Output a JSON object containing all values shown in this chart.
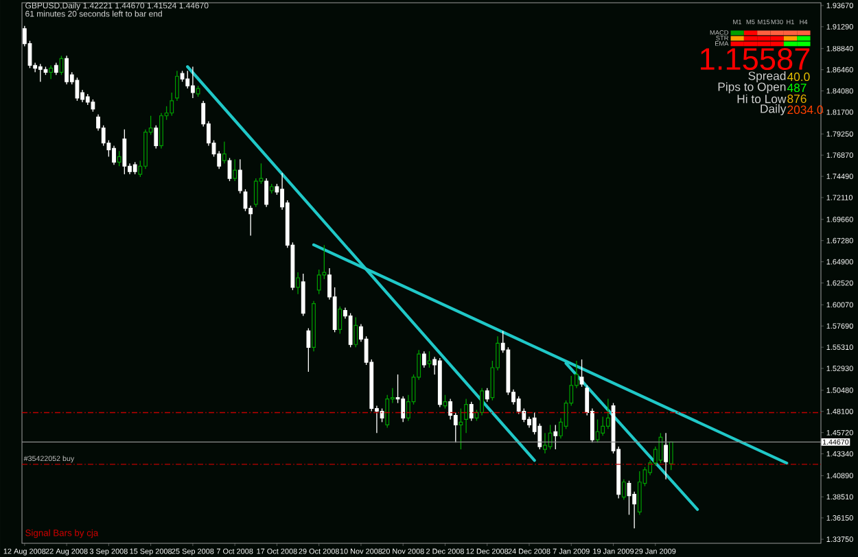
{
  "chart_data": {
    "type": "candlestick",
    "title": "GBPUSD,Daily 1.42221 1.44670 1.41524 1.44670",
    "subtitle": "61 minutes 20 seconds left to bar end",
    "categories": [
      "12 Aug 2008",
      null,
      null,
      null,
      null,
      null,
      null,
      null,
      "22 Aug 2008",
      null,
      null,
      null,
      null,
      null,
      null,
      null,
      "3 Sep 2008",
      null,
      null,
      null,
      null,
      null,
      null,
      null,
      "15 Sep 2008",
      null,
      null,
      null,
      null,
      null,
      null,
      null,
      "25 Sep 2008",
      null,
      null,
      null,
      null,
      null,
      null,
      null,
      "7 Oct 2008",
      null,
      null,
      null,
      null,
      null,
      null,
      null,
      "17 Oct 2008",
      null,
      null,
      null,
      null,
      null,
      null,
      null,
      "29 Oct 2008",
      null,
      null,
      null,
      null,
      null,
      null,
      null,
      "10 Nov 2008",
      null,
      null,
      null,
      null,
      null,
      null,
      null,
      "20 Nov 2008",
      null,
      null,
      null,
      null,
      null,
      null,
      null,
      "2 Dec 2008",
      null,
      null,
      null,
      null,
      null,
      null,
      null,
      "12 Dec 2008",
      null,
      null,
      null,
      null,
      null,
      null,
      null,
      "24 Dec 2008",
      null,
      null,
      null,
      null,
      null,
      null,
      null,
      "7 Jan 2009",
      null,
      null,
      null,
      null,
      null,
      null,
      null,
      "19 Jan 2009",
      null,
      null,
      null,
      null,
      null,
      null,
      null,
      "29 Jan 2009",
      null,
      null,
      null,
      null,
      null,
      null,
      null,
      null,
      null,
      null,
      null,
      null,
      null,
      null,
      null,
      null,
      null,
      null,
      null,
      null,
      null,
      null,
      null,
      null,
      null,
      null,
      null,
      null,
      null,
      null,
      null
    ],
    "ohlc": [
      [
        1.9107,
        1.9138,
        1.8909,
        1.8939
      ],
      [
        1.8939,
        1.897,
        1.8664,
        1.8695
      ],
      [
        1.8695,
        1.8725,
        1.8618,
        1.8664
      ],
      [
        1.8679,
        1.871,
        1.8511,
        1.8649
      ],
      [
        1.8649,
        1.8679,
        1.8588,
        1.8618
      ],
      [
        1.8618,
        1.8695,
        1.8542,
        1.8664
      ],
      [
        1.8695,
        1.8725,
        1.8588,
        1.8618
      ],
      [
        1.8618,
        1.8802,
        1.8588,
        1.8771
      ],
      [
        1.8771,
        1.8802,
        1.8481,
        1.8511
      ],
      [
        1.8588,
        1.8618,
        1.8481,
        1.8511
      ],
      [
        1.8526,
        1.8557,
        1.8297,
        1.8328
      ],
      [
        1.8389,
        1.8419,
        1.8282,
        1.8312
      ],
      [
        1.8343,
        1.8374,
        1.8251,
        1.8282
      ],
      [
        1.8282,
        1.8312,
        1.8175,
        1.8205
      ],
      [
        1.8114,
        1.8144,
        1.7961,
        1.7991
      ],
      [
        1.7991,
        1.8022,
        1.7793,
        1.7823
      ],
      [
        1.7823,
        1.7854,
        1.767,
        1.7747
      ],
      [
        1.7762,
        1.7793,
        1.7579,
        1.7609
      ],
      [
        1.7609,
        1.7732,
        1.7563,
        1.767
      ],
      [
        1.7869,
        1.7976,
        1.7472,
        1.7563
      ],
      [
        1.7563,
        1.7594,
        1.7472,
        1.7502
      ],
      [
        1.7579,
        1.7609,
        1.7472,
        1.7502
      ],
      [
        1.7472,
        1.7625,
        1.7441,
        1.7563
      ],
      [
        1.7563,
        1.7976,
        1.7533,
        1.7946
      ],
      [
        1.7946,
        1.8129,
        1.7915,
        1.7991
      ],
      [
        1.7991,
        1.8022,
        1.7762,
        1.7793
      ],
      [
        1.7793,
        1.816,
        1.7762,
        1.8129
      ],
      [
        1.8129,
        1.8236,
        1.8083,
        1.816
      ],
      [
        1.816,
        1.8389,
        1.8129,
        1.8297
      ],
      [
        1.8328,
        1.8633,
        1.8297,
        1.8572
      ],
      [
        1.8603,
        1.8633,
        1.8511,
        1.8542
      ],
      [
        1.8542,
        1.8633,
        1.8435,
        1.8465
      ],
      [
        1.8465,
        1.8679,
        1.8328,
        1.8389
      ],
      [
        1.8374,
        1.8465,
        1.8343,
        1.8435
      ],
      [
        1.8267,
        1.8297,
        1.8007,
        1.8037
      ],
      [
        1.8037,
        1.8068,
        1.7793,
        1.7823
      ],
      [
        1.7823,
        1.7854,
        1.767,
        1.7701
      ],
      [
        1.7701,
        1.7732,
        1.7533,
        1.7563
      ],
      [
        1.7625,
        1.7839,
        1.7594,
        1.7701
      ],
      [
        1.7625,
        1.7655,
        1.7395,
        1.7426
      ],
      [
        1.7426,
        1.764,
        1.7395,
        1.7518
      ],
      [
        1.7518,
        1.764,
        1.7258,
        1.7288
      ],
      [
        1.7273,
        1.7304,
        1.7059,
        1.709
      ],
      [
        1.709,
        1.712,
        1.6784,
        1.7028
      ],
      [
        1.7135,
        1.7426,
        1.7105,
        1.7395
      ],
      [
        1.7395,
        1.7594,
        1.7365,
        1.7426
      ],
      [
        1.7395,
        1.7426,
        1.7105,
        1.7135
      ],
      [
        1.7288,
        1.7365,
        1.7258,
        1.7334
      ],
      [
        1.7334,
        1.7365,
        1.7242,
        1.7273
      ],
      [
        1.7304,
        1.7487,
        1.7074,
        1.7105
      ],
      [
        1.7151,
        1.7181,
        1.6646,
        1.6677
      ],
      [
        1.6677,
        1.6707,
        1.6172,
        1.6203
      ],
      [
        1.6203,
        1.6371,
        1.6127,
        1.631
      ],
      [
        1.6264,
        1.6356,
        1.5882,
        1.5913
      ],
      [
        1.5714,
        1.5744,
        1.5255,
        1.553
      ],
      [
        1.553,
        1.605,
        1.5485,
        1.602
      ],
      [
        1.6172,
        1.6402,
        1.6127,
        1.6341
      ],
      [
        1.6341,
        1.6677,
        1.6295,
        1.6371
      ],
      [
        1.6341,
        1.6417,
        1.6065,
        1.6096
      ],
      [
        1.6096,
        1.6203,
        1.5699,
        1.5729
      ],
      [
        1.5729,
        1.5989,
        1.5683,
        1.5958
      ],
      [
        1.5943,
        1.5974,
        1.5851,
        1.5882
      ],
      [
        1.5882,
        1.5913,
        1.553,
        1.5561
      ],
      [
        1.5561,
        1.5867,
        1.553,
        1.5775
      ],
      [
        1.576,
        1.579,
        1.5592,
        1.5622
      ],
      [
        1.5622,
        1.5653,
        1.5332,
        1.5362
      ],
      [
        1.5362,
        1.5393,
        1.4812,
        1.4843
      ],
      [
        1.4843,
        1.4873,
        1.4567,
        1.4812
      ],
      [
        1.4812,
        1.4843,
        1.469,
        1.4736
      ],
      [
        1.4659,
        1.4995,
        1.4628,
        1.495
      ],
      [
        1.495,
        1.5072,
        1.4904,
        1.4965
      ],
      [
        1.4965,
        1.5225,
        1.4904,
        1.495
      ],
      [
        1.495,
        1.498,
        1.469,
        1.4736
      ],
      [
        1.4736,
        1.4995,
        1.4705,
        1.4919
      ],
      [
        1.4919,
        1.5225,
        1.4888,
        1.5194
      ],
      [
        1.5194,
        1.55,
        1.5164,
        1.5454
      ],
      [
        1.5454,
        1.5485,
        1.5301,
        1.5332
      ],
      [
        1.5347,
        1.5485,
        1.5301,
        1.5378
      ],
      [
        1.5393,
        1.5423,
        1.5225,
        1.5332
      ],
      [
        1.5378,
        1.5408,
        1.4858,
        1.4888
      ],
      [
        1.4873,
        1.4995,
        1.4843,
        1.4919
      ],
      [
        1.4919,
        1.495,
        1.472,
        1.4766
      ],
      [
        1.4766,
        1.4797,
        1.446,
        1.4659
      ],
      [
        1.4659,
        1.4843,
        1.4384,
        1.469
      ],
      [
        1.472,
        1.495,
        1.4567,
        1.4888
      ],
      [
        1.4888,
        1.4919,
        1.4705,
        1.4736
      ],
      [
        1.4736,
        1.4827,
        1.4705,
        1.4797
      ],
      [
        1.4797,
        1.5072,
        1.4766,
        1.5041
      ],
      [
        1.5041,
        1.5072,
        1.4919,
        1.495
      ],
      [
        1.4965,
        1.5378,
        1.4934,
        1.5301
      ],
      [
        1.5301,
        1.5653,
        1.5271,
        1.5576
      ],
      [
        1.5576,
        1.5714,
        1.5469,
        1.55
      ],
      [
        1.55,
        1.553,
        1.4995,
        1.5026
      ],
      [
        1.5026,
        1.5056,
        1.4888,
        1.4919
      ],
      [
        1.495,
        1.498,
        1.4781,
        1.4812
      ],
      [
        1.4812,
        1.4843,
        1.469,
        1.472
      ],
      [
        1.472,
        1.4751,
        1.4628,
        1.4659
      ],
      [
        1.4736,
        1.4797,
        1.4552,
        1.4583
      ],
      [
        1.4644,
        1.4674,
        1.4384,
        1.4415
      ],
      [
        1.4384,
        1.4567,
        1.4338,
        1.443
      ],
      [
        1.4415,
        1.4659,
        1.4384,
        1.4567
      ],
      [
        1.4583,
        1.4659,
        1.4384,
        1.4537
      ],
      [
        1.4537,
        1.4736,
        1.4506,
        1.469
      ],
      [
        1.4644,
        1.4934,
        1.4613,
        1.4904
      ],
      [
        1.4904,
        1.5209,
        1.4873,
        1.5102
      ],
      [
        1.5102,
        1.5378,
        1.5072,
        1.5225
      ],
      [
        1.5194,
        1.5393,
        1.5087,
        1.5118
      ],
      [
        1.5072,
        1.5102,
        1.4766,
        1.4797
      ],
      [
        1.4812,
        1.4843,
        1.446,
        1.4491
      ],
      [
        1.4491,
        1.472,
        1.446,
        1.4583
      ],
      [
        1.4567,
        1.4751,
        1.4537,
        1.4644
      ],
      [
        1.4644,
        1.495,
        1.4613,
        1.4736
      ],
      [
        1.4873,
        1.4904,
        1.4338,
        1.4369
      ],
      [
        1.4384,
        1.4415,
        1.3834,
        1.388
      ],
      [
        1.3849,
        1.4048,
        1.3818,
        1.4017
      ],
      [
        1.4002,
        1.4032,
        1.365,
        1.3864
      ],
      [
        1.388,
        1.391,
        1.3497,
        1.3772
      ],
      [
        1.3681,
        1.4139,
        1.365,
        1.4017
      ],
      [
        1.4002,
        1.4185,
        1.3971,
        1.4155
      ],
      [
        1.4124,
        1.4262,
        1.4094,
        1.4231
      ],
      [
        1.4231,
        1.4415,
        1.4201,
        1.4384
      ],
      [
        1.4262,
        1.4567,
        1.4231,
        1.4521
      ],
      [
        1.443,
        1.4567,
        1.4048,
        1.4246
      ],
      [
        1.42221,
        1.4467,
        1.41524,
        1.4467
      ],
      null,
      null,
      null,
      null,
      null,
      null,
      null,
      null,
      null,
      null,
      null,
      null,
      null,
      null,
      null,
      null,
      null,
      null,
      null,
      null,
      null,
      null,
      null,
      null,
      null,
      null,
      null,
      null
    ],
    "colors": [
      "#ffffff",
      "#ffffff",
      "#ffffff",
      "#ffffff",
      "#ffffff",
      "#00a000",
      "#ffffff",
      "#00a000",
      "#ffffff",
      "#ffffff",
      "#ffffff",
      "#ffffff",
      "#ffffff",
      "#ffffff",
      "#ffffff",
      "#ffffff",
      "#ffffff",
      "#ffffff",
      "#00a000",
      "#ffffff",
      "#ffffff",
      "#ffffff",
      "#00a000",
      "#00a000",
      "#00a000",
      "#ffffff",
      "#00a000",
      "#00a000",
      "#00a000",
      "#00a000",
      "#ffffff",
      "#ffffff",
      "#ffffff",
      "#00a000",
      "#ffffff",
      "#ffffff",
      "#ffffff",
      "#ffffff",
      "#00a000",
      "#ffffff",
      "#00a000",
      "#ffffff",
      "#ffffff",
      "#ffffff",
      "#00a000",
      "#00a000",
      "#ffffff",
      "#00a000",
      "#ffffff",
      "#ffffff",
      "#ffffff",
      "#ffffff",
      "#00a000",
      "#ffffff",
      "#ffffff",
      "#00a000",
      "#00a000",
      "#00a000",
      "#ffffff",
      "#ffffff",
      "#00a000",
      "#ffffff",
      "#ffffff",
      "#00a000",
      "#ffffff",
      "#ffffff",
      "#ffffff",
      "#ffffff",
      "#ffffff",
      "#00a000",
      "#00a000",
      "#ffffff",
      "#ffffff",
      "#00a000",
      "#00a000",
      "#00a000",
      "#ffffff",
      "#00a000",
      "#ffffff",
      "#ffffff",
      "#00a000",
      "#ffffff",
      "#ffffff",
      "#00a000",
      "#00a000",
      "#ffffff",
      "#00a000",
      "#00a000",
      "#ffffff",
      "#00a000",
      "#00a000",
      "#ffffff",
      "#ffffff",
      "#ffffff",
      "#ffffff",
      "#ffffff",
      "#ffffff",
      "#ffffff",
      "#ffffff",
      "#00a000",
      "#00a000",
      "#ffffff",
      "#00a000",
      "#00a000",
      "#00a000",
      "#00a000",
      "#ffffff",
      "#ffffff",
      "#ffffff",
      "#00a000",
      "#00a000",
      "#00a000",
      "#ffffff",
      "#ffffff",
      "#00a000",
      "#ffffff",
      "#ffffff",
      "#00a000",
      "#00a000",
      "#00a000",
      "#00a000",
      "#00a000",
      "#ffffff",
      "#00a000",
      null,
      null,
      null,
      null,
      null,
      null,
      null,
      null,
      null,
      null,
      null,
      null,
      null,
      null,
      null,
      null,
      null,
      null,
      null,
      null,
      null,
      null,
      null,
      null,
      null,
      null,
      null,
      null
    ],
    "series": [
      {
        "type": "line",
        "values": [
          null,
          null,
          null,
          null,
          null,
          null,
          null,
          null,
          null,
          null,
          null,
          null,
          null,
          null,
          null,
          null,
          null,
          null,
          null,
          null,
          null,
          null,
          null,
          null,
          null,
          null,
          null,
          null,
          null,
          null,
          null,
          1.868,
          null,
          null,
          null,
          null,
          null,
          null,
          null,
          null,
          null,
          null,
          null,
          null,
          null,
          null,
          null,
          null,
          null,
          null,
          null,
          null,
          null,
          null,
          null,
          null,
          null,
          null,
          null,
          null,
          null,
          null,
          null,
          null,
          null,
          null,
          null,
          null,
          null,
          null,
          null,
          null,
          null,
          null,
          null,
          null,
          null,
          null,
          null,
          null,
          null,
          null,
          null,
          null,
          null,
          null,
          null,
          null,
          null,
          null,
          null,
          null,
          null,
          null,
          null,
          null,
          null,
          1.426,
          null,
          null,
          null,
          null,
          null,
          null,
          null,
          null,
          null,
          null,
          null,
          null,
          null,
          null,
          null,
          null,
          null,
          null,
          null,
          null,
          null,
          null,
          null,
          null,
          null,
          null,
          null,
          null,
          null,
          null,
          null,
          null,
          null,
          null,
          null,
          null,
          null,
          null,
          null,
          null,
          null,
          null,
          null,
          null,
          null,
          null,
          null,
          null,
          null,
          null,
          null,
          null,
          null,
          null
        ],
        "color": "#20c8c8"
      },
      {
        "type": "line",
        "values": [
          null,
          null,
          null,
          null,
          null,
          null,
          null,
          null,
          null,
          null,
          null,
          null,
          null,
          null,
          null,
          null,
          null,
          null,
          null,
          null,
          null,
          null,
          null,
          null,
          null,
          null,
          null,
          null,
          null,
          null,
          null,
          null,
          null,
          null,
          null,
          null,
          null,
          null,
          null,
          null,
          null,
          null,
          null,
          null,
          null,
          null,
          null,
          null,
          null,
          null,
          null,
          null,
          null,
          null,
          null,
          1.668,
          null,
          null,
          null,
          null,
          null,
          null,
          null,
          null,
          null,
          null,
          null,
          null,
          null,
          null,
          null,
          null,
          null,
          null,
          null,
          null,
          null,
          null,
          null,
          null,
          null,
          null,
          null,
          null,
          null,
          null,
          null,
          null,
          null,
          null,
          null,
          null,
          null,
          null,
          null,
          null,
          null,
          null,
          null,
          null,
          null,
          null,
          null,
          null,
          null,
          null,
          null,
          null,
          null,
          null,
          null,
          null,
          null,
          null,
          null,
          null,
          null,
          null,
          null,
          null,
          null,
          null,
          null,
          null,
          null,
          null,
          null,
          null,
          null,
          null,
          null,
          null,
          null,
          null,
          null,
          null,
          null,
          null,
          null,
          null,
          null,
          null,
          null,
          null,
          null,
          1.423,
          null,
          null,
          null,
          null,
          null,
          null
        ],
        "color": "#20c8c8"
      },
      {
        "type": "line",
        "values": [
          null,
          null,
          null,
          null,
          null,
          null,
          null,
          null,
          null,
          null,
          null,
          null,
          null,
          null,
          null,
          null,
          null,
          null,
          null,
          null,
          null,
          null,
          null,
          null,
          null,
          null,
          null,
          null,
          null,
          null,
          null,
          null,
          null,
          null,
          null,
          null,
          null,
          null,
          null,
          null,
          null,
          null,
          null,
          null,
          null,
          null,
          null,
          null,
          null,
          null,
          null,
          null,
          null,
          null,
          null,
          null,
          null,
          null,
          null,
          null,
          null,
          null,
          null,
          null,
          null,
          null,
          null,
          null,
          null,
          null,
          null,
          null,
          null,
          null,
          null,
          null,
          null,
          null,
          null,
          null,
          null,
          null,
          null,
          null,
          null,
          null,
          null,
          null,
          null,
          null,
          null,
          null,
          null,
          null,
          null,
          null,
          null,
          null,
          null,
          null,
          null,
          null,
          null,
          1.535,
          null,
          null,
          null,
          null,
          null,
          null,
          null,
          null,
          null,
          null,
          null,
          null,
          null,
          null,
          null,
          null,
          null,
          null,
          null,
          null,
          null,
          null,
          null,
          null,
          1.371,
          null,
          null,
          null,
          null,
          null,
          null,
          null,
          null,
          null,
          null,
          null,
          null,
          null,
          null,
          null,
          null,
          null,
          null,
          null,
          null,
          null,
          null,
          null
        ],
        "color": "#20c8c8"
      }
    ],
    "ylim": [
      1.333,
      1.9398
    ],
    "yticks": [
      {
        "value": 1.3375,
        "label": "1.33750"
      },
      {
        "value": 1.3615,
        "label": "1.36150"
      },
      {
        "value": 1.3851,
        "label": "1.38510"
      },
      {
        "value": 1.4089,
        "label": "1.40890"
      },
      {
        "value": 1.4334,
        "label": "1.43340"
      },
      {
        "value": 1.4572,
        "label": "1.45720"
      },
      {
        "value": 1.481,
        "label": "1.48100"
      },
      {
        "value": 1.5048,
        "label": "1.50480"
      },
      {
        "value": 1.5293,
        "label": "1.52930"
      },
      {
        "value": 1.5531,
        "label": "1.55310"
      },
      {
        "value": 1.5769,
        "label": "1.57690"
      },
      {
        "value": 1.6007,
        "label": "1.60070"
      },
      {
        "value": 1.6252,
        "label": "1.62520"
      },
      {
        "value": 1.649,
        "label": "1.64900"
      },
      {
        "value": 1.6728,
        "label": "1.67280"
      },
      {
        "value": 1.6966,
        "label": "1.69660"
      },
      {
        "value": 1.7211,
        "label": "1.72110"
      },
      {
        "value": 1.7449,
        "label": "1.74490"
      },
      {
        "value": 1.7687,
        "label": "1.76870"
      },
      {
        "value": 1.7925,
        "label": "1.79250"
      },
      {
        "value": 1.817,
        "label": "1.81700"
      },
      {
        "value": 1.8408,
        "label": "1.84080"
      },
      {
        "value": 1.8646,
        "label": "1.86460"
      },
      {
        "value": 1.8884,
        "label": "1.88840"
      },
      {
        "value": 1.9129,
        "label": "1.91290"
      },
      {
        "value": 1.9367,
        "label": "1.93670"
      }
    ],
    "ref_lines": [
      {
        "axis": "y",
        "value": 1.4797,
        "color": "#c00000",
        "line_style": "dashed"
      },
      {
        "axis": "y",
        "value": 1.4216,
        "label": "#35422052 buy",
        "color": "#c00000",
        "line_style": "dashed"
      },
      {
        "axis": "y",
        "value": 1.4467,
        "label": "1.44670",
        "color": "#909090",
        "line_style": "solid"
      }
    ],
    "annotations": [
      "M1",
      "M5",
      "M15",
      "M30",
      "H1",
      "H4",
      "MACD",
      "STR",
      "EMA",
      "1.15587",
      "Spread",
      "40.0",
      "Pips to Open",
      "487",
      "Hi to Low",
      "876",
      "Daily",
      "2034.0",
      "Signal Bars by cja"
    ]
  }
}
